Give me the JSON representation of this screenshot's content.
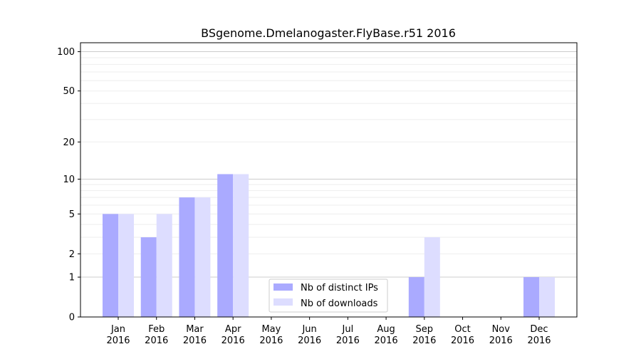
{
  "chart_data": {
    "type": "bar",
    "title": "BSgenome.Dmelanogaster.FlyBase.r51 2016",
    "xlabel": "",
    "ylabel": "",
    "yscale": "log(1+y)",
    "ylim": [
      0,
      117
    ],
    "grid": true,
    "legend_position": "bottom-center",
    "categories": [
      "Jan\n2016",
      "Feb\n2016",
      "Mar\n2016",
      "Apr\n2016",
      "May\n2016",
      "Jun\n2016",
      "Jul\n2016",
      "Aug\n2016",
      "Sep\n2016",
      "Oct\n2016",
      "Nov\n2016",
      "Dec\n2016"
    ],
    "ytick_labels": [
      "0",
      "1",
      "2",
      "5",
      "10",
      "20",
      "50",
      "100"
    ],
    "series": [
      {
        "name": "Nb of distinct IPs",
        "color": "#aaaaff",
        "values": [
          5,
          3,
          7,
          11,
          0,
          0,
          0,
          0,
          1,
          0,
          0,
          1
        ]
      },
      {
        "name": "Nb of downloads",
        "color": "#ddddff",
        "values": [
          5,
          5,
          7,
          11,
          0,
          0,
          0,
          0,
          3,
          0,
          0,
          1
        ]
      }
    ]
  }
}
